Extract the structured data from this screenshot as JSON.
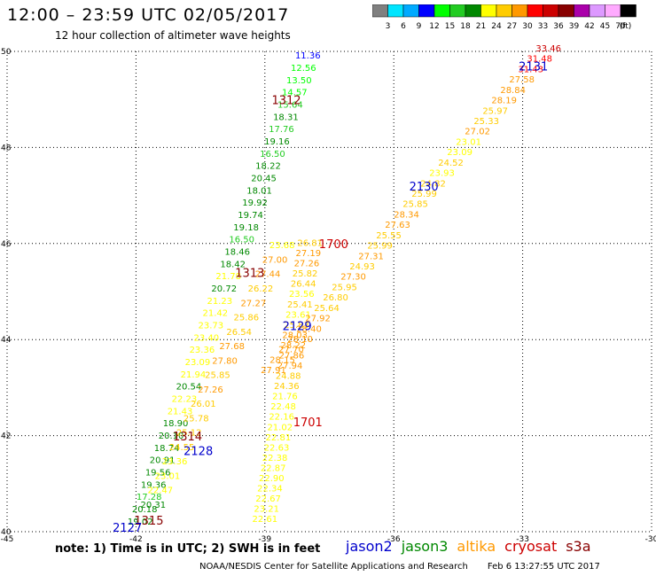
{
  "header": {
    "title": "12:00 – 23:59 UTC 02/05/2017",
    "subtitle": "12 hour collection of altimeter wave heights"
  },
  "colorbar": {
    "labels": [
      "3",
      "6",
      "9",
      "12",
      "15",
      "18",
      "21",
      "24",
      "27",
      "30",
      "33",
      "36",
      "39",
      "42",
      "45",
      "70"
    ],
    "unit": "(ft)",
    "colors": [
      "#808080",
      "#00e5ff",
      "#00aaff",
      "#0000ff",
      "#00ff00",
      "#22cc22",
      "#008800",
      "#ffff00",
      "#ffcc00",
      "#ff9900",
      "#ff0000",
      "#cc0000",
      "#880000",
      "#aa00aa",
      "#dd99ff",
      "#ffaaff",
      "#000000"
    ]
  },
  "chart_data": {
    "type": "scatter",
    "xlim": [
      -45,
      -30
    ],
    "ylim": [
      40,
      50
    ],
    "x_ticks": [
      "-45",
      "-42",
      "-39",
      "-36",
      "-33",
      "-30"
    ],
    "y_ticks": [
      "40",
      "42",
      "44",
      "46",
      "48",
      "50"
    ],
    "grid": true,
    "passes": [
      {
        "label": "1312",
        "lon": -38.5,
        "lat": 48.9,
        "color": "#880000"
      },
      {
        "label": "1313",
        "lon": -39.35,
        "lat": 45.3,
        "color": "#880000"
      },
      {
        "label": "1314",
        "lon": -40.8,
        "lat": 41.9,
        "color": "#880000"
      },
      {
        "label": "1315",
        "lon": -41.7,
        "lat": 40.15,
        "color": "#880000"
      },
      {
        "label": "1700",
        "lon": -37.4,
        "lat": 45.9,
        "color": "#cc0000"
      },
      {
        "label": "1701",
        "lon": -38.0,
        "lat": 42.2,
        "color": "#cc0000"
      },
      {
        "label": "2127",
        "lon": -42.2,
        "lat": 40.0,
        "color": "#0000cc"
      },
      {
        "label": "2128",
        "lon": -40.55,
        "lat": 41.6,
        "color": "#0000cc"
      },
      {
        "label": "2129",
        "lon": -38.25,
        "lat": 44.2,
        "color": "#0000cc"
      },
      {
        "label": "2130",
        "lon": -35.3,
        "lat": 47.1,
        "color": "#0000cc"
      },
      {
        "label": "2131",
        "lon": -32.75,
        "lat": 49.6,
        "color": "#0000cc"
      }
    ],
    "tracks": [
      {
        "name": "track-a",
        "lon0": -41.9,
        "lat0": 40.15,
        "lon1": -38.0,
        "lat1": 49.85,
        "values": [
          "19.02",
          "20.18",
          "17.28",
          "19.36",
          "19.56",
          "20.91",
          "18.74",
          "20.10",
          "18.90",
          "21.43",
          "22.23",
          "20.54",
          "21.94",
          "23.09",
          "23.36",
          "23.40",
          "23.73",
          "21.42",
          "21.23",
          "20.72",
          "21.78",
          "18.42",
          "18.46",
          "16.50",
          "19.18",
          "19.74",
          "19.92",
          "18.01",
          "20.45",
          "18.22",
          "16.50",
          "19.16",
          "17.76",
          "18.31",
          "15.64",
          "14.57",
          "13.50",
          "12.56",
          "11.36"
        ]
      },
      {
        "name": "track-b",
        "lon0": -41.6,
        "lat0": 40.5,
        "lon1": -38.6,
        "lat1": 45.9,
        "values": [
          "20.31",
          "22.47",
          "23.01",
          "23.36",
          "24.55",
          "25.12",
          "25.78",
          "26.01",
          "27.26",
          "25.85",
          "27.80",
          "27.68",
          "26.54",
          "25.86",
          "27.27",
          "26.22",
          "27.44",
          "27.00",
          "23.68"
        ]
      },
      {
        "name": "track-c",
        "lon0": -39.0,
        "lat0": 40.2,
        "lon1": -37.95,
        "lat1": 45.95,
        "values": [
          "22.61",
          "23.21",
          "22.67",
          "22.34",
          "22.90",
          "22.87",
          "22.38",
          "22.63",
          "22.81",
          "21.02",
          "22.16",
          "22.48",
          "21.76",
          "24.36",
          "24.88",
          "27.94",
          "27.86",
          "28.22",
          "28.03",
          "25.83",
          "23.61",
          "25.41",
          "23.56",
          "26.44",
          "25.82",
          "27.26",
          "27.19",
          "26.81"
        ]
      },
      {
        "name": "track-d",
        "lon0": -38.8,
        "lat0": 43.3,
        "lon1": -32.4,
        "lat1": 50.0,
        "values": [
          "27.91",
          "28.15",
          "27.70",
          "28.10",
          "28.40",
          "27.92",
          "25.64",
          "26.80",
          "25.95",
          "27.30",
          "24.93",
          "27.31",
          "25.99",
          "25.55",
          "27.63",
          "28.34",
          "25.85",
          "25.99",
          "24.82",
          "23.93",
          "24.52",
          "23.09",
          "23.01",
          "27.02",
          "25.33",
          "25.97",
          "28.19",
          "28.84",
          "27.58",
          "31.43",
          "31.48",
          "33.46"
        ]
      }
    ]
  },
  "footer": {
    "note": "note: 1) Time is in UTC; 2) SWH is in feet",
    "credit": "NOAA/NESDIS Center for Satellite Applications and Research",
    "timestamp": "Feb  6 13:27:55 UTC 2017"
  },
  "legend": [
    {
      "name": "jason2",
      "color": "#0000cc"
    },
    {
      "name": "jason3",
      "color": "#008800"
    },
    {
      "name": "altika",
      "color": "#ff9900"
    },
    {
      "name": "cryosat",
      "color": "#cc0000"
    },
    {
      "name": "s3a",
      "color": "#880000"
    }
  ]
}
